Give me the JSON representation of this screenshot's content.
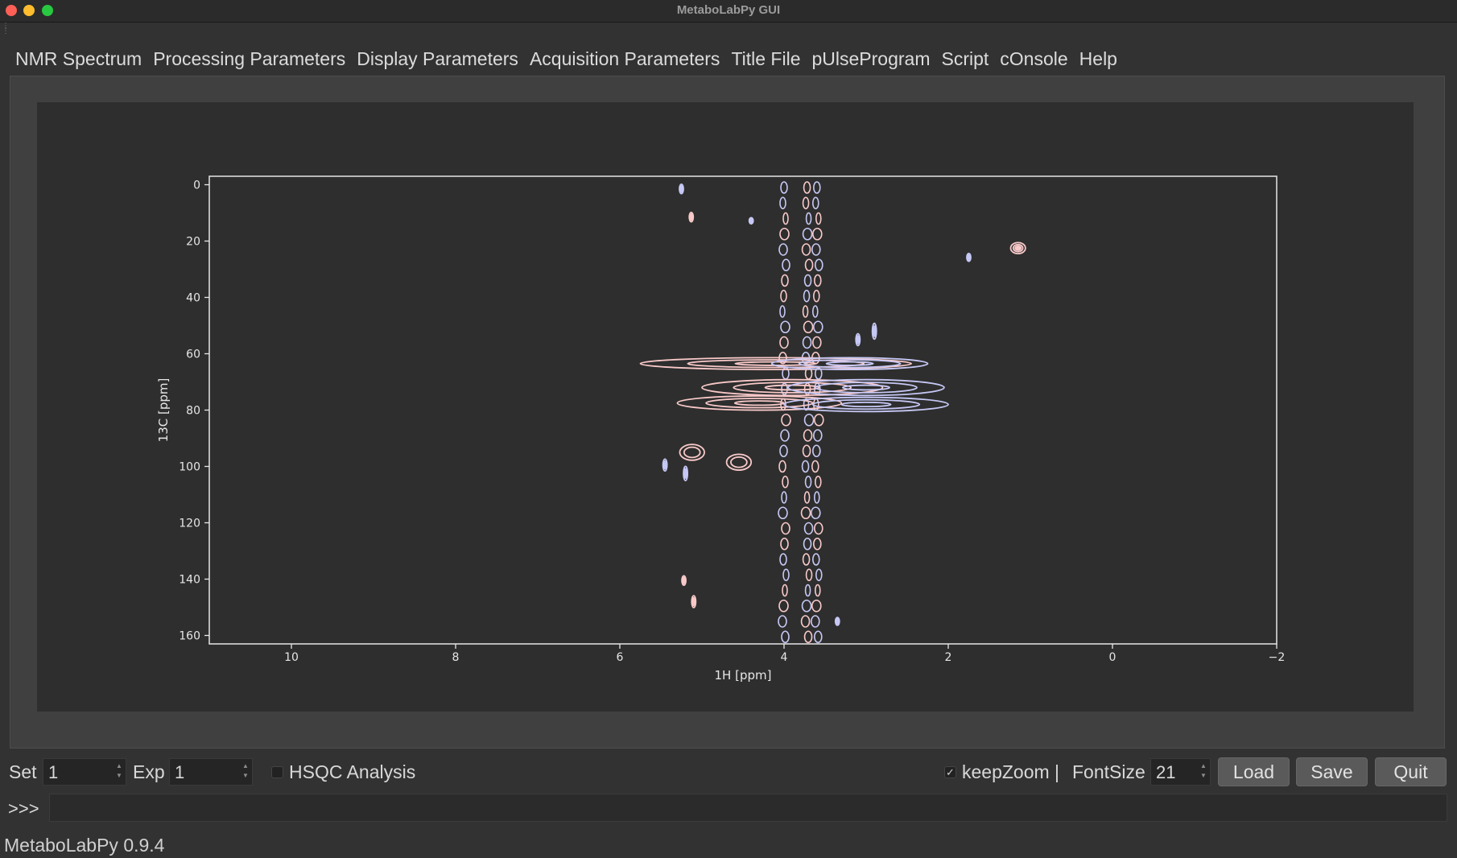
{
  "window": {
    "title": "MetaboLabPy GUI"
  },
  "tabs": [
    {
      "label": "NMR Spectrum",
      "active": true
    },
    {
      "label": "Processing Parameters"
    },
    {
      "label": "Display Parameters"
    },
    {
      "label": "Acquisition Parameters"
    },
    {
      "label": "Title File"
    },
    {
      "label": "pUlseProgram"
    },
    {
      "label": "Script"
    },
    {
      "label": "cOnsole"
    },
    {
      "label": "Help"
    }
  ],
  "controls": {
    "set_label": "Set",
    "set_value": "1",
    "exp_label": "Exp",
    "exp_value": "1",
    "hsqc_label": "HSQC Analysis",
    "hsqc_checked": false,
    "keepzoom_label": "keepZoom |",
    "keepzoom_checked": true,
    "keepzoom_mark": "✓",
    "fontsize_label": "FontSize",
    "fontsize_value": "21",
    "load_label": "Load",
    "save_label": "Save",
    "quit_label": "Quit"
  },
  "console": {
    "prompt": ">>>",
    "value": ""
  },
  "status": {
    "text": "MetaboLabPy 0.9.4"
  },
  "colors": {
    "background": "#323232",
    "plot_bg": "#2e2e2e",
    "positive_contour": "#f9c9c9",
    "negative_contour": "#c6c8f5",
    "accent": "#3d86d8"
  },
  "chart_data": {
    "type": "contour",
    "xlabel": "1H [ppm]",
    "ylabel": "13C [ppm]",
    "xlim": [
      11.0,
      -2.0
    ],
    "ylim": [
      -3,
      163
    ],
    "x_ticks": [
      10,
      8,
      6,
      4,
      2,
      0,
      -2
    ],
    "x_tick_labels": [
      "10",
      "8",
      "6",
      "4",
      "2",
      "0",
      "−2"
    ],
    "y_ticks": [
      0,
      20,
      40,
      60,
      80,
      100,
      120,
      140,
      160
    ],
    "y_tick_labels": [
      "0",
      "20",
      "40",
      "60",
      "80",
      "100",
      "120",
      "140",
      "160"
    ],
    "series": [
      {
        "sign": "positive",
        "peaks": [
          {
            "x": 1.15,
            "y": 22.5,
            "w": 0.18,
            "h": 1.4
          },
          {
            "x": 5.12,
            "y": 95.0,
            "w": 0.3,
            "h": 2.0
          },
          {
            "x": 4.55,
            "y": 98.5,
            "w": 0.3,
            "h": 2.0
          },
          {
            "x": 5.13,
            "y": 11.5,
            "w": 0.03,
            "h": 1.2
          },
          {
            "x": 5.22,
            "y": 140.5,
            "w": 0.03,
            "h": 1.2
          },
          {
            "x": 5.1,
            "y": 148.0,
            "w": 0.05,
            "h": 1.5
          },
          {
            "x": 4.1,
            "y": 63.5,
            "w": 3.3,
            "h": 1.5
          },
          {
            "x": 3.9,
            "y": 72.0,
            "w": 2.2,
            "h": 2.0
          },
          {
            "x": 4.3,
            "y": 77.5,
            "w": 2.0,
            "h": 1.8
          }
        ]
      },
      {
        "sign": "negative",
        "peaks": [
          {
            "x": 5.25,
            "y": 1.5,
            "w": 0.03,
            "h": 1.2
          },
          {
            "x": 4.4,
            "y": 12.8,
            "w": 0.03,
            "h": 0.8
          },
          {
            "x": 1.75,
            "y": 25.8,
            "w": 0.03,
            "h": 1.0
          },
          {
            "x": 5.45,
            "y": 99.5,
            "w": 0.05,
            "h": 1.5
          },
          {
            "x": 5.2,
            "y": 102.5,
            "w": 0.05,
            "h": 1.8
          },
          {
            "x": 3.1,
            "y": 55.0,
            "w": 0.05,
            "h": 1.5
          },
          {
            "x": 2.9,
            "y": 52.0,
            "w": 0.05,
            "h": 2.0
          },
          {
            "x": 3.35,
            "y": 155.0,
            "w": 0.03,
            "h": 1.0
          },
          {
            "x": 3.2,
            "y": 63.5,
            "w": 1.9,
            "h": 1.5
          },
          {
            "x": 3.0,
            "y": 72.0,
            "w": 1.9,
            "h": 2.0
          },
          {
            "x": 3.0,
            "y": 78.0,
            "w": 2.0,
            "h": 1.8
          }
        ]
      }
    ],
    "vertical_streaks": [
      {
        "x": 4.0,
        "sign": "both"
      },
      {
        "x": 3.72,
        "sign": "both"
      },
      {
        "x": 3.6,
        "sign": "both"
      }
    ]
  }
}
